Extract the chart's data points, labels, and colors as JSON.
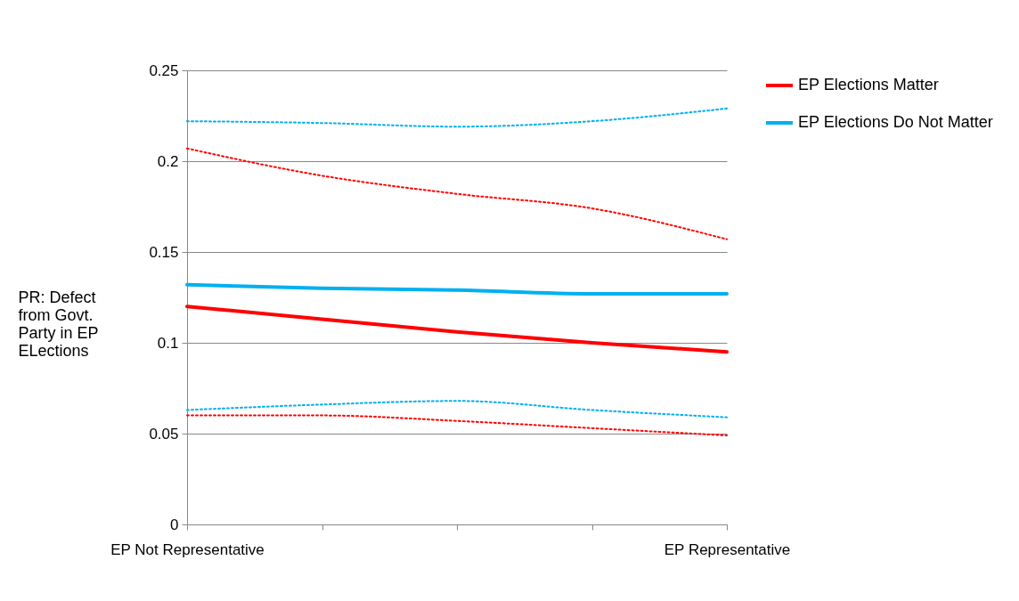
{
  "chart_data": {
    "type": "line",
    "ylabel": "PR: Defect from Govt. Party in EP ELections",
    "categories": [
      "EP  Not Representative",
      null,
      null,
      null,
      "EP Representative"
    ],
    "series": [
      {
        "name": "EP Elections Matter",
        "color": "#ff0000",
        "line_style": "solid",
        "values": [
          0.12,
          0.113,
          0.106,
          0.1,
          0.095
        ]
      },
      {
        "name": "EP Elections Do Not Matter",
        "color": "#00b0f0",
        "line_style": "solid",
        "values": [
          0.132,
          0.13,
          0.129,
          0.127,
          0.127
        ]
      },
      {
        "color": "#00b0f0",
        "line_style": "dotted",
        "values": [
          0.222,
          0.221,
          0.219,
          0.222,
          0.229
        ]
      },
      {
        "color": "#ff0000",
        "line_style": "dotted",
        "values": [
          0.207,
          0.192,
          0.182,
          0.174,
          0.157
        ]
      },
      {
        "color": "#00b0f0",
        "line_style": "dotted",
        "values": [
          0.063,
          0.066,
          0.068,
          0.063,
          0.059
        ]
      },
      {
        "color": "#ff0000",
        "line_style": "dotted",
        "values": [
          0.06,
          0.06,
          0.057,
          0.053,
          0.049
        ]
      }
    ],
    "ylim": [
      0,
      0.25
    ],
    "yticks": [
      0,
      0.05,
      0.1,
      0.15,
      0.2,
      0.25
    ],
    "grid": "y",
    "legend": "top right",
    "marker": "none"
  }
}
